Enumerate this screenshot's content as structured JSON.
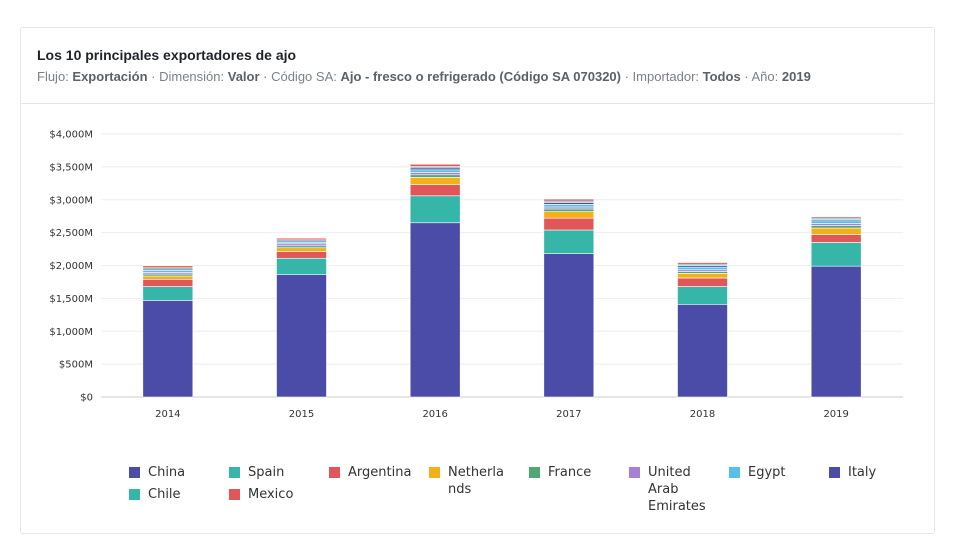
{
  "card": {
    "title": "Los 10 principales exportadores de ajo",
    "subtitle": [
      {
        "t": "Flujo: ",
        "b": false
      },
      {
        "t": "Exportación",
        "b": true
      },
      {
        "t": " · Dimensión: ",
        "b": false
      },
      {
        "t": "Valor",
        "b": true
      },
      {
        "t": " · Código SA: ",
        "b": false
      },
      {
        "t": "Ajo - fresco o refrigerado (Código SA 070320)",
        "b": true
      },
      {
        "t": " · Importador: ",
        "b": false
      },
      {
        "t": "Todos",
        "b": true
      },
      {
        "t": " · Año: ",
        "b": false
      },
      {
        "t": "2019",
        "b": true
      }
    ]
  },
  "chart_data": {
    "type": "bar",
    "stacked": true,
    "categories": [
      "2014",
      "2015",
      "2016",
      "2017",
      "2018",
      "2019"
    ],
    "y_ticks": [
      "$0",
      "$500M",
      "$1,000M",
      "$1,500M",
      "$2,000M",
      "$2,500M",
      "$3,000M",
      "$3,500M",
      "$4,000M"
    ],
    "ylim": [
      0,
      4000
    ],
    "grid": true,
    "legend_position": "bottom",
    "series": [
      {
        "name": "China",
        "color": "#4b4ba8",
        "values": [
          1470,
          1860,
          2650,
          2180,
          1410,
          1990
        ]
      },
      {
        "name": "Spain",
        "color": "#35b6a8",
        "values": [
          210,
          250,
          410,
          360,
          270,
          360
        ]
      },
      {
        "name": "Argentina",
        "color": "#e15759",
        "values": [
          110,
          100,
          170,
          180,
          130,
          120
        ]
      },
      {
        "name": "Netherlands",
        "color": "#f3b01b",
        "values": [
          50,
          60,
          110,
          100,
          70,
          100
        ]
      },
      {
        "name": "France",
        "color": "#4fa772",
        "values": [
          30,
          30,
          40,
          40,
          30,
          40
        ]
      },
      {
        "name": "United Arab Emirates",
        "color": "#a97fd6",
        "values": [
          25,
          30,
          35,
          30,
          25,
          30
        ]
      },
      {
        "name": "Egypt",
        "color": "#55c1ea",
        "values": [
          30,
          20,
          40,
          40,
          40,
          40
        ]
      },
      {
        "name": "Italy",
        "color": "#4b4ba8",
        "values": [
          20,
          20,
          30,
          30,
          25,
          20
        ]
      },
      {
        "name": "Chile",
        "color": "#35b6a8",
        "values": [
          20,
          20,
          20,
          20,
          20,
          20
        ]
      },
      {
        "name": "Mexico",
        "color": "#e15759",
        "values": [
          30,
          25,
          35,
          30,
          25,
          20
        ]
      }
    ]
  },
  "legend": {
    "items": [
      {
        "name": "China",
        "color": "#4b4ba8",
        "lines": [
          "China"
        ]
      },
      {
        "name": "Spain",
        "color": "#35b6a8",
        "lines": [
          "Spain"
        ]
      },
      {
        "name": "Argentina",
        "color": "#e15759",
        "lines": [
          "Argentina"
        ]
      },
      {
        "name": "Netherlands",
        "color": "#f3b01b",
        "lines": [
          "Netherla",
          "nds"
        ]
      },
      {
        "name": "France",
        "color": "#4fa772",
        "lines": [
          "France"
        ]
      },
      {
        "name": "United Arab Emirates",
        "color": "#a97fd6",
        "lines": [
          "United",
          "Arab",
          "Emirates"
        ]
      },
      {
        "name": "Egypt",
        "color": "#55c1ea",
        "lines": [
          "Egypt"
        ]
      },
      {
        "name": "Italy",
        "color": "#4b4ba8",
        "lines": [
          "Italy"
        ]
      },
      {
        "name": "Chile",
        "color": "#35b6a8",
        "lines": [
          "Chile"
        ]
      },
      {
        "name": "Mexico",
        "color": "#e15759",
        "lines": [
          "Mexico"
        ]
      }
    ]
  }
}
